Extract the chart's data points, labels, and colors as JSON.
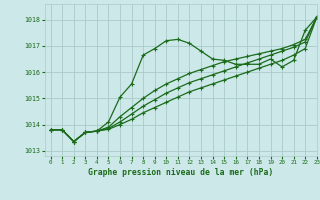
{
  "title": "Graphe pression niveau de la mer (hPa)",
  "bg_color": "#cce8e8",
  "grid_color": "#aacaca",
  "line_color": "#1a6b1a",
  "marker_color": "#1a6b1a",
  "xlim": [
    -0.5,
    23
  ],
  "ylim": [
    1012.8,
    1018.6
  ],
  "yticks": [
    1013,
    1014,
    1015,
    1016,
    1017,
    1018
  ],
  "xticks": [
    0,
    1,
    2,
    3,
    4,
    5,
    6,
    7,
    8,
    9,
    10,
    11,
    12,
    13,
    14,
    15,
    16,
    17,
    18,
    19,
    20,
    21,
    22,
    23
  ],
  "series": [
    [
      1013.8,
      1013.8,
      1013.35,
      1013.7,
      1013.75,
      1014.1,
      1015.05,
      1015.55,
      1016.65,
      1016.9,
      1017.2,
      1017.25,
      1017.1,
      1016.8,
      1016.5,
      1016.45,
      1016.3,
      1016.3,
      1016.3,
      1016.5,
      1016.2,
      1016.45,
      1017.6,
      1018.1
    ],
    [
      1013.8,
      1013.8,
      1013.35,
      1013.7,
      1013.75,
      1013.9,
      1014.3,
      1014.65,
      1015.0,
      1015.3,
      1015.55,
      1015.75,
      1015.95,
      1016.1,
      1016.25,
      1016.4,
      1016.5,
      1016.6,
      1016.7,
      1016.8,
      1016.9,
      1017.05,
      1017.25,
      1018.1
    ],
    [
      1013.8,
      1013.8,
      1013.35,
      1013.7,
      1013.75,
      1013.85,
      1014.1,
      1014.4,
      1014.7,
      1014.95,
      1015.2,
      1015.4,
      1015.6,
      1015.75,
      1015.9,
      1016.05,
      1016.2,
      1016.35,
      1016.5,
      1016.65,
      1016.8,
      1016.95,
      1017.15,
      1018.1
    ],
    [
      1013.8,
      1013.8,
      1013.35,
      1013.7,
      1013.75,
      1013.82,
      1014.0,
      1014.2,
      1014.45,
      1014.65,
      1014.85,
      1015.05,
      1015.25,
      1015.4,
      1015.55,
      1015.7,
      1015.85,
      1016.0,
      1016.15,
      1016.3,
      1016.45,
      1016.65,
      1016.9,
      1018.1
    ]
  ]
}
